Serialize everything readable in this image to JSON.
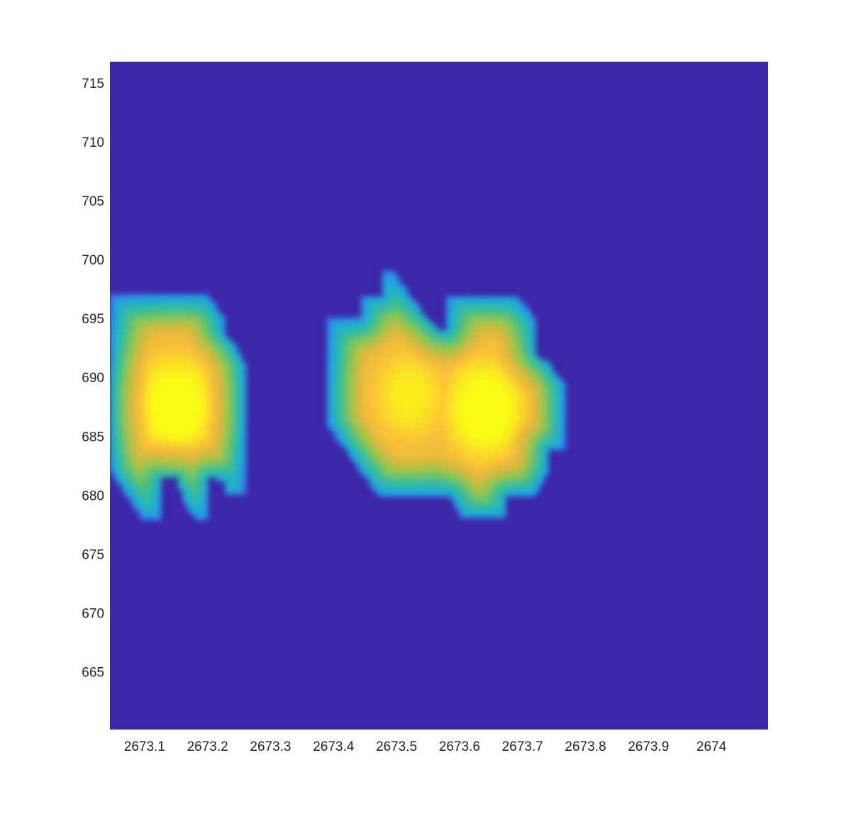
{
  "chart_data": {
    "type": "heatmap",
    "title": "",
    "xlabel": "",
    "ylabel": "",
    "xlim": [
      2673.045,
      2674.09
    ],
    "ylim": [
      660.1,
      716.8
    ],
    "x_ticks": [
      2673.1,
      2673.2,
      2673.3,
      2673.4,
      2673.5,
      2673.6,
      2673.7,
      2673.8,
      2673.9,
      2674
    ],
    "x_tick_labels": [
      "2673.1",
      "2673.2",
      "2673.3",
      "2673.4",
      "2673.5",
      "2673.6",
      "2673.7",
      "2673.8",
      "2673.9",
      "2674"
    ],
    "y_ticks": [
      665,
      670,
      675,
      680,
      685,
      690,
      695,
      700,
      705,
      710,
      715
    ],
    "y_tick_labels": [
      "665",
      "670",
      "675",
      "680",
      "685",
      "690",
      "695",
      "700",
      "705",
      "710",
      "715"
    ],
    "colormap": [
      "#3e26a8",
      "#4352f6",
      "#2797eb",
      "#1fb4c5",
      "#44c084",
      "#98c64a",
      "#e0b73d",
      "#fbc237",
      "#f9fb15"
    ],
    "background_color": "#3e26a8",
    "grid": false,
    "colorbar": false,
    "peaks": [
      {
        "x": 2673.15,
        "y": 687.6,
        "intensity": 1.0
      },
      {
        "x": 2673.52,
        "y": 688.4,
        "intensity": 0.85
      },
      {
        "x": 2673.64,
        "y": 687.3,
        "intensity": 1.0
      }
    ],
    "blob_regions": [
      {
        "name": "left",
        "outline": [
          [
            2673.045,
            697
          ],
          [
            2673.2,
            697
          ],
          [
            2673.225,
            695.2
          ],
          [
            2673.225,
            694
          ],
          [
            2673.245,
            692.6
          ],
          [
            2673.258,
            691.2
          ],
          [
            2673.258,
            680
          ],
          [
            2673.225,
            680
          ],
          [
            2673.225,
            681.2
          ],
          [
            2673.2,
            681.5
          ],
          [
            2673.2,
            678
          ],
          [
            2673.18,
            678
          ],
          [
            2673.165,
            679.2
          ],
          [
            2673.15,
            681.5
          ],
          [
            2673.125,
            681.5
          ],
          [
            2673.125,
            678
          ],
          [
            2673.095,
            678
          ],
          [
            2673.045,
            682
          ]
        ],
        "values": [
          [
            2673.045,
            697,
            0.18
          ],
          [
            2673.1,
            697,
            0.3
          ],
          [
            2673.2,
            697,
            0.25
          ],
          [
            2673.225,
            694,
            0.2
          ],
          [
            2673.258,
            691.2,
            0.1
          ],
          [
            2673.258,
            680,
            0.1
          ],
          [
            2673.2,
            681.5,
            0.3
          ],
          [
            2673.15,
            681.5,
            0.35
          ],
          [
            2673.125,
            678,
            0.08
          ],
          [
            2673.045,
            682,
            0.3
          ],
          [
            2673.045,
            690,
            0.55
          ],
          [
            2673.2,
            688,
            0.6
          ]
        ]
      },
      {
        "name": "right",
        "outline": [
          [
            2673.39,
            695
          ],
          [
            2673.445,
            695
          ],
          [
            2673.445,
            697
          ],
          [
            2673.475,
            697
          ],
          [
            2673.475,
            699
          ],
          [
            2673.495,
            699
          ],
          [
            2673.535,
            696
          ],
          [
            2673.565,
            694
          ],
          [
            2673.58,
            694
          ],
          [
            2673.58,
            697
          ],
          [
            2673.665,
            697
          ],
          [
            2673.69,
            697
          ],
          [
            2673.72,
            695
          ],
          [
            2673.72,
            692
          ],
          [
            2673.745,
            691
          ],
          [
            2673.765,
            689.5
          ],
          [
            2673.765,
            684
          ],
          [
            2673.74,
            684
          ],
          [
            2673.74,
            682
          ],
          [
            2673.72,
            680
          ],
          [
            2673.675,
            680
          ],
          [
            2673.675,
            678
          ],
          [
            2673.605,
            678
          ],
          [
            2673.585,
            680
          ],
          [
            2673.555,
            680
          ],
          [
            2673.47,
            680
          ],
          [
            2673.39,
            686
          ]
        ],
        "values": [
          [
            2673.39,
            695,
            0.08
          ],
          [
            2673.475,
            699,
            0.08
          ],
          [
            2673.535,
            696,
            0.35
          ],
          [
            2673.58,
            694,
            0.35
          ],
          [
            2673.665,
            697,
            0.25
          ],
          [
            2673.72,
            695,
            0.15
          ],
          [
            2673.765,
            689.5,
            0.08
          ],
          [
            2673.765,
            684,
            0.08
          ],
          [
            2673.72,
            680,
            0.1
          ],
          [
            2673.675,
            678,
            0.08
          ],
          [
            2673.605,
            678,
            0.08
          ],
          [
            2673.555,
            680,
            0.15
          ],
          [
            2673.47,
            680,
            0.1
          ],
          [
            2673.39,
            686,
            0.08
          ],
          [
            2673.44,
            690,
            0.3
          ],
          [
            2673.58,
            690,
            0.7
          ],
          [
            2673.6,
            684,
            0.6
          ],
          [
            2673.5,
            684,
            0.5
          ]
        ]
      }
    ]
  }
}
